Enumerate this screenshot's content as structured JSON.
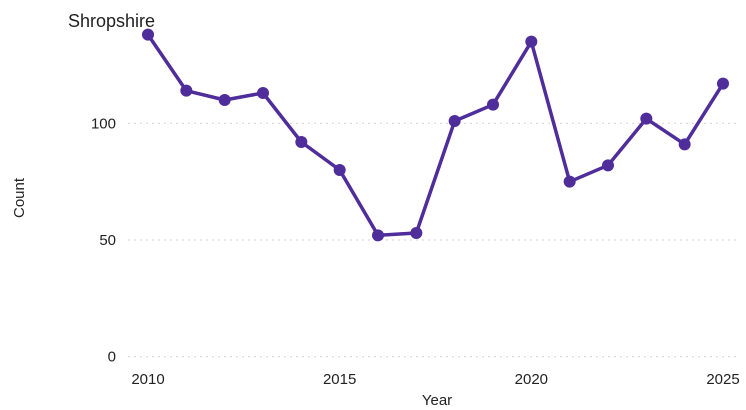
{
  "chart_data": {
    "type": "line",
    "title": "Shropshire",
    "xlabel": "Year",
    "ylabel": "Count",
    "x": [
      2010,
      2011,
      2012,
      2013,
      2014,
      2015,
      2016,
      2017,
      2018,
      2019,
      2020,
      2021,
      2022,
      2023,
      2024,
      2025
    ],
    "series": [
      {
        "values": [
          138,
          114,
          110,
          113,
          92,
          80,
          52,
          53,
          101,
          108,
          135,
          75,
          82,
          102,
          91,
          117
        ],
        "color": "#4f2d9a"
      }
    ],
    "xticks": [
      2010,
      2015,
      2020,
      2025
    ],
    "xtick_labels": [
      "2010",
      "2015",
      "2020",
      "2025"
    ],
    "yticks": [
      0,
      50,
      100
    ],
    "ytick_labels": [
      "0",
      "50",
      "100"
    ],
    "xlim": [
      2010,
      2025
    ],
    "ylim": [
      -10,
      140
    ],
    "grid": "horizontal-dotted",
    "legend": "none"
  }
}
